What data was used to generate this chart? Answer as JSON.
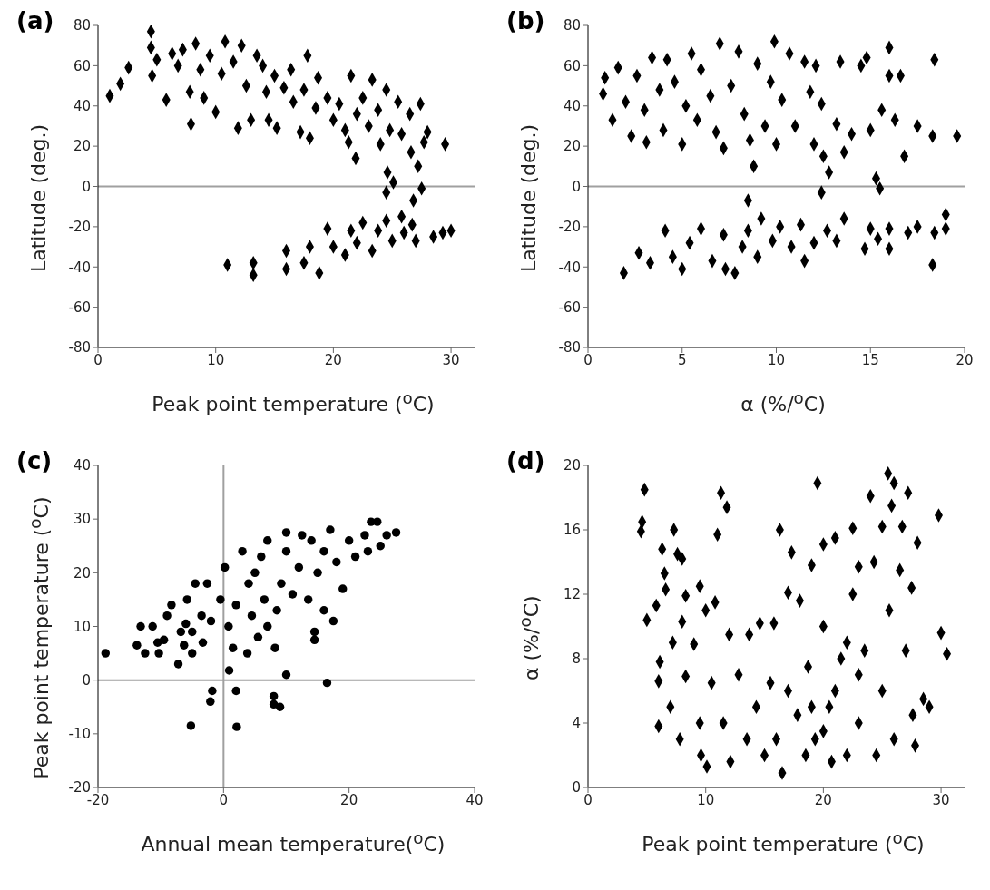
{
  "chart_data": [
    {
      "type": "scatter",
      "title": "(a)",
      "xlabel": "Peak point temperature ($^{o}$C)",
      "ylabel": "Latitude (deg.)",
      "xlim": [
        0,
        32
      ],
      "xticks": [
        0,
        10,
        20,
        30
      ],
      "ylim": [
        -80,
        80
      ],
      "yticks": [
        -80,
        -60,
        -40,
        -20,
        0,
        20,
        40,
        60,
        80
      ],
      "marker": "diamond",
      "ref_lines": [
        {
          "axis": "y",
          "value": 0,
          "color": "#a0a0a0"
        }
      ],
      "series": [
        {
          "color": "#000000",
          "x": [
            1,
            1.9,
            2.6,
            4.5,
            4.5,
            4.6,
            5,
            5.8,
            6.3,
            6.8,
            7.2,
            7.8,
            7.9,
            8.3,
            8.7,
            9,
            9.5,
            10,
            10.5,
            10.8,
            11.5,
            11.9,
            12.2,
            12.6,
            13,
            13.5,
            14,
            14.3,
            14.5,
            15,
            15.2,
            15.8,
            16.4,
            16.6,
            17.2,
            17.5,
            17.8,
            18,
            18.5,
            18.7,
            19.5,
            20,
            20.5,
            21,
            21.3,
            21.5,
            21.9,
            22,
            22.5,
            23,
            23.3,
            23.8,
            24,
            24.5,
            24.6,
            24.8,
            25.1,
            25.5,
            25.8,
            26.5,
            26.6,
            26.8,
            27.2,
            27.4,
            27.5,
            27.7,
            28,
            29.5,
            24.5,
            11,
            13.2,
            13.2,
            16,
            16,
            17.5,
            18,
            18.8,
            19.5,
            20,
            21,
            21.5,
            22,
            22.5,
            23.3,
            23.8,
            24.5,
            25,
            25.8,
            26,
            26.7,
            27,
            28.5,
            29.3,
            30
          ],
          "values": [
            45,
            51,
            59,
            77,
            69,
            55,
            63,
            43,
            66,
            60,
            68,
            47,
            31,
            71,
            58,
            44,
            65,
            37,
            56,
            72,
            62,
            29,
            70,
            50,
            33,
            65,
            60,
            47,
            33,
            55,
            29,
            49,
            58,
            42,
            27,
            48,
            65,
            24,
            39,
            54,
            44,
            33,
            41,
            28,
            22,
            55,
            14,
            36,
            44,
            30,
            53,
            38,
            21,
            48,
            7,
            28,
            2,
            42,
            26,
            36,
            17,
            -7,
            10,
            41,
            -1,
            22,
            27,
            21,
            -3,
            -39,
            -38,
            -44,
            -41,
            -32,
            -38,
            -30,
            -43,
            -21,
            -30,
            -34,
            -22,
            -28,
            -18,
            -32,
            -22,
            -17,
            -27,
            -15,
            -23,
            -19,
            -27,
            -25,
            -23,
            -22
          ]
        }
      ]
    },
    {
      "type": "scatter",
      "title": "(b)",
      "xlabel": "α (%/$^{o}$C)",
      "ylabel": "Latitude (deg.)",
      "xlim": [
        0,
        20
      ],
      "xticks": [
        0,
        5,
        10,
        15,
        20
      ],
      "ylim": [
        -80,
        80
      ],
      "yticks": [
        -80,
        -60,
        -40,
        -20,
        0,
        20,
        40,
        60,
        80
      ],
      "marker": "diamond",
      "ref_lines": [
        {
          "axis": "y",
          "value": 0,
          "color": "#a0a0a0"
        }
      ],
      "series": [
        {
          "color": "#000000",
          "x": [
            0.8,
            0.9,
            1.3,
            1.6,
            2,
            2.3,
            2.6,
            3,
            3.1,
            3.4,
            3.8,
            4,
            4.2,
            4.6,
            5,
            5.2,
            5.5,
            5.8,
            6,
            6.5,
            6.8,
            7,
            7.2,
            7.6,
            8,
            8.3,
            8.6,
            8.8,
            9,
            9.4,
            9.7,
            9.9,
            10,
            10.3,
            10.7,
            11,
            11.5,
            11.8,
            12,
            12.1,
            12.4,
            12.5,
            12.8,
            13.2,
            13.4,
            13.6,
            14,
            14.5,
            14.8,
            15,
            15.3,
            15.5,
            15.6,
            16,
            16,
            16.3,
            16.6,
            16.8,
            17.5,
            18.4,
            18.3,
            19.6,
            12.4,
            8.5,
            1.9,
            2.7,
            3.3,
            4.1,
            4.5,
            5,
            5.4,
            6,
            6.6,
            7.2,
            7.3,
            7.8,
            8.2,
            8.5,
            9,
            9.2,
            9.8,
            10.2,
            10.8,
            11.5,
            11.3,
            12,
            12.7,
            13.2,
            13.6,
            14.7,
            15,
            15.4,
            16,
            16,
            17,
            17.5,
            18.3,
            18.4,
            19,
            19
          ],
          "values": [
            46,
            54,
            33,
            59,
            42,
            25,
            55,
            38,
            22,
            64,
            48,
            28,
            63,
            52,
            21,
            40,
            66,
            33,
            58,
            45,
            27,
            71,
            19,
            50,
            67,
            36,
            23,
            10,
            61,
            30,
            52,
            72,
            21,
            43,
            66,
            30,
            62,
            47,
            21,
            60,
            41,
            15,
            7,
            31,
            62,
            17,
            26,
            60,
            64,
            28,
            4,
            -1,
            38,
            69,
            55,
            33,
            55,
            15,
            30,
            63,
            25,
            25,
            -3,
            -7,
            -43,
            -33,
            -38,
            -22,
            -35,
            -41,
            -28,
            -21,
            -37,
            -24,
            -41,
            -43,
            -30,
            -22,
            -35,
            -16,
            -27,
            -20,
            -30,
            -37,
            -19,
            -28,
            -22,
            -27,
            -16,
            -31,
            -21,
            -26,
            -31,
            -21,
            -23,
            -20,
            -39,
            -23,
            -14,
            -21
          ]
        }
      ]
    },
    {
      "type": "scatter",
      "title": "(c)",
      "xlabel": "Annual mean temperature($^{o}$C)",
      "ylabel": "Peak point temperature ($^{o}$C)",
      "xlim": [
        -20,
        40
      ],
      "xticks": [
        -20,
        0,
        20,
        40
      ],
      "ylim": [
        -20,
        40
      ],
      "yticks": [
        -20,
        -10,
        0,
        10,
        20,
        30,
        40
      ],
      "marker": "circle",
      "ref_lines": [
        {
          "axis": "y",
          "value": 0,
          "color": "#a0a0a0"
        },
        {
          "axis": "x",
          "value": 0,
          "color": "#a0a0a0"
        }
      ],
      "series": [
        {
          "color": "#000000",
          "x": [
            -18.8,
            -13.2,
            -13.8,
            -12.5,
            -11.3,
            -10.5,
            -10.3,
            -9.5,
            -9,
            -8.3,
            -7.2,
            -6.8,
            -6.3,
            -6,
            -5.8,
            -5,
            -5,
            -4.5,
            -3.5,
            -3.3,
            -2.6,
            -2,
            -1.8,
            -2.1,
            -5.2,
            -0.5,
            0.2,
            0.9,
            0.8,
            1.5,
            2,
            2.1,
            2,
            3,
            3.8,
            4,
            4.5,
            5,
            5.5,
            6,
            6.5,
            7,
            7,
            8,
            8,
            8.2,
            8.5,
            9,
            9.2,
            10,
            10,
            10,
            11,
            12,
            12.5,
            13.5,
            14,
            14.5,
            14.5,
            15,
            16,
            16,
            16.5,
            17,
            17.5,
            18,
            19,
            20,
            21,
            22.5,
            23,
            23.5,
            24.5,
            25,
            26,
            27.5
          ],
          "values": [
            5,
            10,
            6.5,
            5,
            10,
            7,
            5,
            7.5,
            12,
            14,
            3,
            9,
            6.5,
            10.5,
            15,
            5,
            9,
            18,
            12,
            7,
            18,
            11,
            -2,
            -4,
            -8.5,
            15,
            21,
            1.8,
            10,
            6,
            -2,
            -8.7,
            14,
            24,
            5,
            18,
            12,
            20,
            8,
            23,
            15,
            26,
            10,
            -3,
            -4.5,
            6,
            13,
            -5,
            18,
            27.5,
            1,
            24,
            16,
            21,
            27,
            15,
            26,
            7.5,
            9,
            20,
            13,
            24,
            -0.5,
            28,
            11,
            22,
            17,
            26,
            23,
            27,
            24,
            29.5,
            29.5,
            25,
            27,
            27.5
          ]
        }
      ]
    },
    {
      "type": "scatter",
      "title": "(d)",
      "xlabel": "Peak point temperature ($^{o}$C)",
      "ylabel": "α (%/$^{o}$C)",
      "xlim": [
        0,
        32
      ],
      "xticks": [
        0,
        10,
        20,
        30
      ],
      "ylim": [
        0,
        20
      ],
      "yticks": [
        0,
        4,
        8,
        12,
        16,
        20
      ],
      "marker": "diamond",
      "series": [
        {
          "color": "#000000",
          "x": [
            4.8,
            4.6,
            4.5,
            5,
            5.8,
            6,
            6,
            6.1,
            6.3,
            6.6,
            6.5,
            7,
            7.2,
            7.3,
            7.6,
            7.8,
            8,
            8,
            8.3,
            8.3,
            9,
            9.5,
            9.5,
            9.6,
            10,
            10.1,
            10.5,
            10.8,
            11,
            11.3,
            11.5,
            11.8,
            12,
            12.1,
            12.8,
            13.5,
            13.7,
            14.3,
            14.6,
            15,
            15.5,
            15.8,
            16,
            16.3,
            16.5,
            17,
            17.3,
            17.8,
            18,
            18.5,
            18.7,
            19,
            19.3,
            19.5,
            20,
            20,
            20.5,
            20.7,
            21,
            21.5,
            22,
            22.5,
            22.5,
            23,
            23,
            23.5,
            24,
            24.3,
            24.5,
            25,
            25,
            25.5,
            25.6,
            25.8,
            26,
            26,
            26.5,
            26.7,
            27,
            27.2,
            27.5,
            27.6,
            27.8,
            28,
            28.5,
            29,
            29.8,
            30,
            30.5,
            17,
            19,
            21,
            23,
            22,
            20
          ],
          "values": [
            18.5,
            16.5,
            15.9,
            10.4,
            11.3,
            3.8,
            6.6,
            7.8,
            14.8,
            12.3,
            13.3,
            5,
            9,
            16,
            14.5,
            3,
            10.3,
            14.2,
            6.9,
            11.9,
            8.9,
            4,
            12.5,
            2,
            11,
            1.3,
            6.5,
            11.5,
            15.7,
            18.3,
            4,
            17.4,
            9.5,
            1.6,
            7,
            3,
            9.5,
            5,
            10.2,
            2,
            6.5,
            10.2,
            3,
            16,
            0.9,
            12.1,
            14.6,
            4.5,
            11.6,
            2,
            7.5,
            13.8,
            3,
            18.9,
            10,
            15.1,
            5,
            1.6,
            15.5,
            8,
            2,
            16.1,
            12,
            4,
            13.7,
            8.5,
            18.1,
            14,
            2,
            6,
            16.2,
            19.5,
            11,
            17.5,
            3,
            18.9,
            13.5,
            16.2,
            8.5,
            18.3,
            12.4,
            4.5,
            2.6,
            15.2,
            5.5,
            5,
            16.9,
            9.6,
            8.3,
            6,
            5,
            6,
            7,
            9,
            3.5
          ]
        }
      ]
    }
  ]
}
